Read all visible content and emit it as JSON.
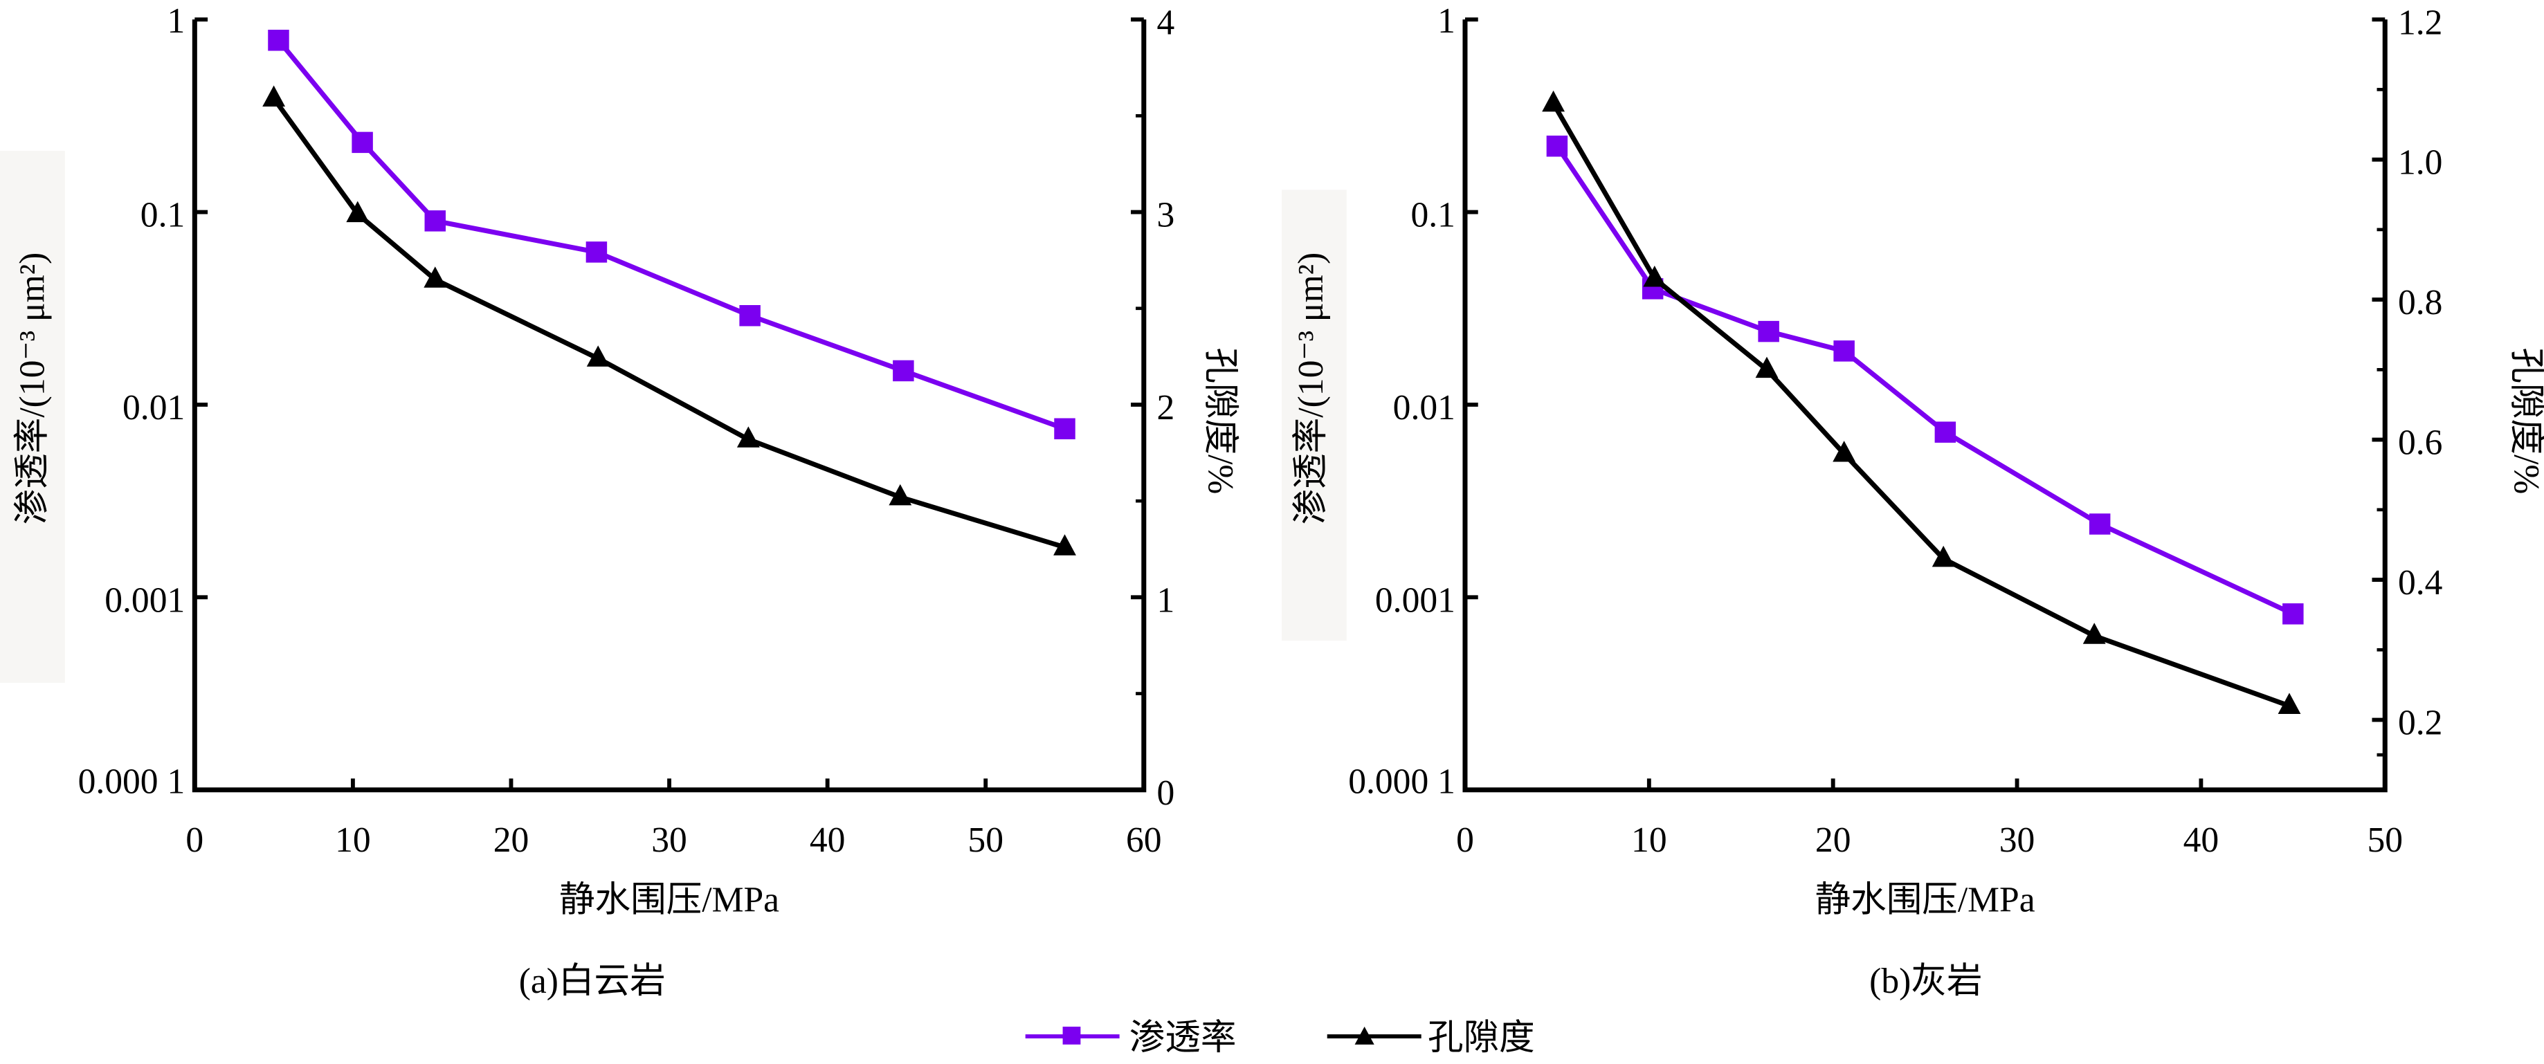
{
  "legend": {
    "items": [
      {
        "label": "渗透率",
        "color": "#7B00F0",
        "marker": "square"
      },
      {
        "label": "孔隙度",
        "color": "#000000",
        "marker": "triangle"
      }
    ],
    "placement": "bottom-center"
  },
  "chart_data": [
    {
      "type": "line",
      "title": "(a)白云岩",
      "xlabel": "静水围压/MPa",
      "ylabel": "渗透率/(10⁻³ μm²)",
      "y2label": "孔隙度/%",
      "xlim": [
        0,
        60
      ],
      "xticks": [
        "0",
        "10",
        "20",
        "30",
        "40",
        "50",
        "60"
      ],
      "ylim": [
        0.0001,
        1
      ],
      "yscale": "log",
      "yticks": [
        "1",
        "0.1",
        "0.01",
        "0.001",
        "0.000 1"
      ],
      "y2lim": [
        0,
        4
      ],
      "y2ticks": [
        "0",
        "1",
        "2",
        "3",
        "4"
      ],
      "series": [
        {
          "name": "渗透率",
          "axis": "left",
          "color": "#7B00F0",
          "x": [
            5.3,
            10.6,
            15.2,
            25.4,
            35.1,
            44.8,
            55.0
          ],
          "values": [
            0.78,
            0.23,
            0.09,
            0.062,
            0.029,
            0.015,
            0.0075
          ]
        },
        {
          "name": "孔隙度",
          "axis": "right",
          "color": "#000000",
          "x": [
            5.0,
            10.3,
            15.2,
            25.5,
            35.0,
            44.6,
            55.0
          ],
          "values": [
            3.59,
            2.99,
            2.65,
            2.24,
            1.82,
            1.52,
            1.26
          ]
        }
      ]
    },
    {
      "type": "line",
      "title": "(b)灰岩",
      "xlabel": "静水围压/MPa",
      "ylabel": "渗透率/(10⁻³ μm²)",
      "y2label": "孔隙度/%",
      "xlim": [
        0,
        50
      ],
      "xticks": [
        "0",
        "10",
        "20",
        "30",
        "40",
        "50"
      ],
      "ylim": [
        0.0001,
        1
      ],
      "yscale": "log",
      "yticks": [
        "1",
        "0.1",
        "0.01",
        "0.001",
        "0.000 1"
      ],
      "y2lim": [
        0.1,
        1.2
      ],
      "y2ticks": [
        "0.2",
        "0.4",
        "0.6",
        "0.8",
        "1.0",
        "1.2"
      ],
      "series": [
        {
          "name": "渗透率",
          "axis": "left",
          "color": "#7B00F0",
          "x": [
            5.0,
            10.2,
            16.5,
            20.6,
            26.1,
            34.5,
            45.0
          ],
          "values": [
            0.22,
            0.04,
            0.024,
            0.019,
            0.0072,
            0.0024,
            0.00082
          ]
        },
        {
          "name": "孔隙度",
          "axis": "right",
          "color": "#000000",
          "x": [
            4.8,
            10.3,
            16.4,
            20.6,
            26.0,
            34.2,
            44.8
          ],
          "values": [
            1.08,
            0.83,
            0.7,
            0.58,
            0.43,
            0.32,
            0.22
          ]
        }
      ]
    }
  ]
}
